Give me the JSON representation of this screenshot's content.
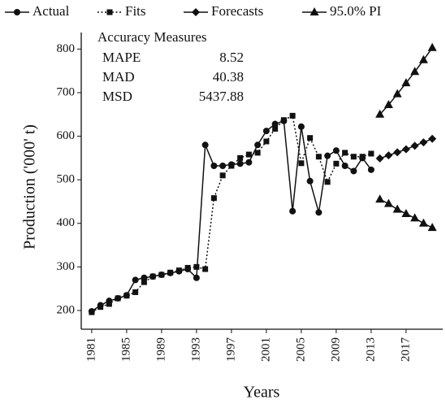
{
  "chart_data": {
    "type": "line",
    "x_label": "Years",
    "y_label": "Production ('000' t)",
    "xlim": [
      1979.8,
      2021.2
    ],
    "ylim": [
      157,
      838
    ],
    "xticks": [
      1981,
      1985,
      1989,
      1993,
      1997,
      2001,
      2005,
      2009,
      2013,
      2017
    ],
    "yticks": [
      200,
      300,
      400,
      500,
      600,
      700,
      800
    ],
    "series": [
      {
        "name": "Actual",
        "color": "#111111",
        "marker": "circle",
        "dash": "solid",
        "x": [
          1981,
          1982,
          1983,
          1984,
          1985,
          1986,
          1987,
          1988,
          1989,
          1990,
          1991,
          1992,
          1993,
          1994,
          1995,
          1996,
          1997,
          1998,
          1999,
          2000,
          2001,
          2002,
          2003,
          2004,
          2005,
          2006,
          2007,
          2008,
          2009,
          2010,
          2011,
          2012,
          2013
        ],
        "values": [
          198,
          212,
          222,
          228,
          235,
          270,
          275,
          278,
          282,
          286,
          290,
          295,
          275,
          580,
          532,
          532,
          535,
          537,
          540,
          580,
          612,
          628,
          635,
          428,
          622,
          497,
          425,
          555,
          567,
          532,
          520,
          550,
          523
        ]
      },
      {
        "name": "Fits",
        "color": "#111111",
        "marker": "square",
        "dash": "dotted",
        "x": [
          1981,
          1982,
          1983,
          1984,
          1985,
          1986,
          1987,
          1988,
          1989,
          1990,
          1991,
          1992,
          1993,
          1994,
          1995,
          1996,
          1997,
          1998,
          1999,
          2000,
          2001,
          2002,
          2003,
          2004,
          2005,
          2006,
          2007,
          2008,
          2009,
          2010,
          2011,
          2012,
          2013
        ],
        "values": [
          196,
          208,
          215,
          228,
          234,
          242,
          265,
          278,
          282,
          287,
          292,
          298,
          300,
          295,
          458,
          510,
          532,
          550,
          558,
          562,
          588,
          617,
          637,
          647,
          538,
          596,
          553,
          495,
          537,
          562,
          553,
          553,
          560
        ]
      },
      {
        "name": "Forecasts",
        "color": "#111111",
        "marker": "diamond",
        "dash": "solid",
        "x": [
          2014,
          2015,
          2016,
          2017,
          2018,
          2019,
          2020
        ],
        "values": [
          549,
          556,
          563,
          570,
          578,
          586,
          594
        ]
      },
      {
        "name": "95.0% PI",
        "color": "#111111",
        "marker": "triangle",
        "dash": "solid",
        "x": [
          2014,
          2015,
          2016,
          2017,
          2018,
          2019,
          2020
        ],
        "upper": [
          650,
          672,
          697,
          722,
          748,
          775,
          803
        ],
        "lower": [
          455,
          445,
          432,
          422,
          412,
          400,
          390
        ]
      }
    ],
    "accuracy": {
      "title": "Accuracy Measures",
      "rows": [
        [
          "MAPE",
          8.52
        ],
        [
          "MAD",
          40.38
        ],
        [
          "MSD",
          5437.88
        ]
      ]
    }
  }
}
